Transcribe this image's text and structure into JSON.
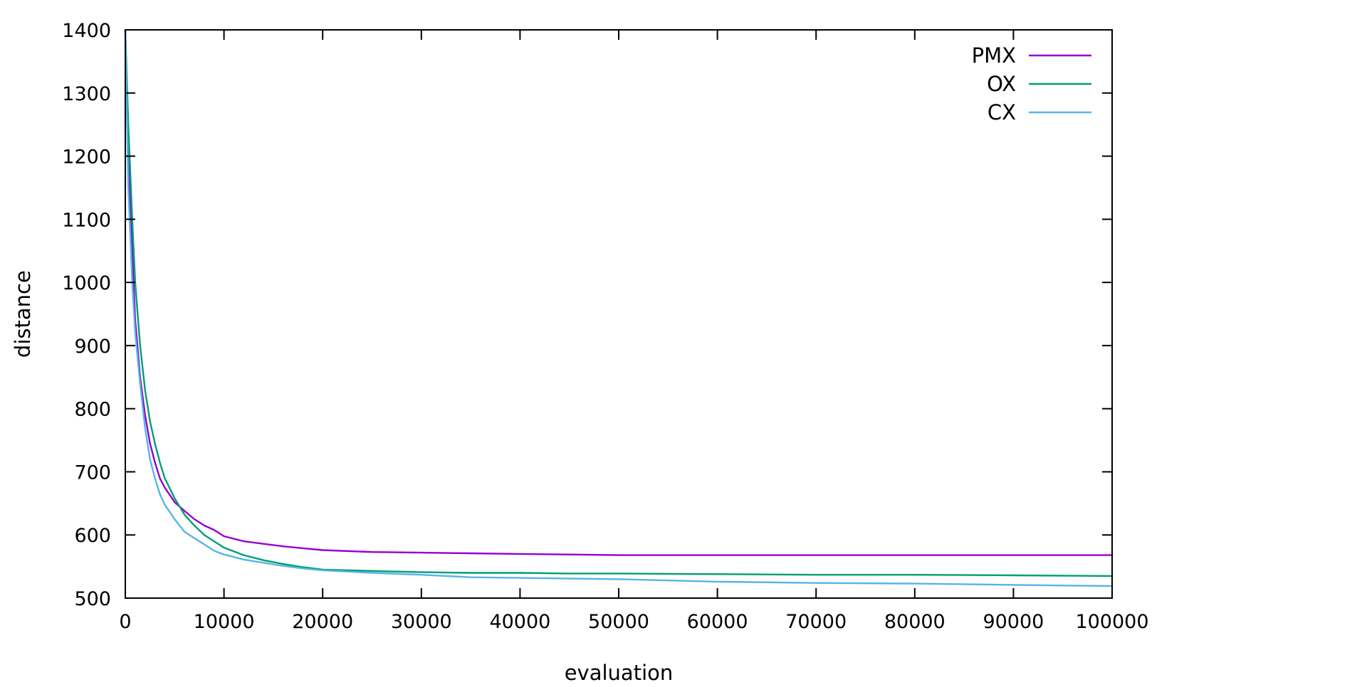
{
  "chart_data": {
    "type": "line",
    "title": "",
    "xlabel": "evaluation",
    "ylabel": "distance",
    "xlim": [
      0,
      100000
    ],
    "ylim": [
      500,
      1400
    ],
    "xticks": [
      0,
      10000,
      20000,
      30000,
      40000,
      50000,
      60000,
      70000,
      80000,
      90000,
      100000
    ],
    "yticks": [
      500,
      600,
      700,
      800,
      900,
      1000,
      1100,
      1200,
      1300,
      1400
    ],
    "grid": false,
    "legend": "top-right",
    "series": [
      {
        "name": "PMX",
        "color": "#9400d3",
        "x": [
          0,
          300,
          700,
          1000,
          1500,
          2000,
          2500,
          3000,
          3500,
          4000,
          5000,
          6000,
          7000,
          8000,
          9000,
          10000,
          12000,
          14000,
          16000,
          18000,
          20000,
          25000,
          30000,
          35000,
          40000,
          45000,
          50000,
          60000,
          70000,
          80000,
          90000,
          100000
        ],
        "y": [
          1400,
          1200,
          1050,
          940,
          850,
          790,
          745,
          715,
          690,
          675,
          652,
          638,
          625,
          615,
          608,
          598,
          590,
          586,
          582,
          579,
          576,
          573,
          572,
          571,
          570,
          569,
          568,
          568,
          568,
          568,
          568,
          568
        ]
      },
      {
        "name": "OX",
        "color": "#009e73",
        "x": [
          0,
          300,
          700,
          1000,
          1500,
          2000,
          2500,
          3000,
          3500,
          4000,
          5000,
          6000,
          7000,
          8000,
          9000,
          10000,
          12000,
          14000,
          16000,
          18000,
          20000,
          25000,
          30000,
          35000,
          40000,
          45000,
          50000,
          60000,
          70000,
          80000,
          90000,
          100000
        ],
        "y": [
          1400,
          1250,
          1100,
          1000,
          900,
          830,
          780,
          745,
          715,
          690,
          658,
          632,
          615,
          600,
          590,
          580,
          568,
          560,
          554,
          549,
          545,
          543,
          541,
          540,
          540,
          539,
          539,
          538,
          537,
          537,
          536,
          535
        ]
      },
      {
        "name": "CX",
        "color": "#56b4e9",
        "x": [
          0,
          300,
          700,
          1000,
          1500,
          2000,
          2500,
          3000,
          3500,
          4000,
          5000,
          6000,
          7000,
          8000,
          9000,
          10000,
          12000,
          14000,
          16000,
          18000,
          20000,
          25000,
          30000,
          35000,
          40000,
          45000,
          50000,
          60000,
          70000,
          80000,
          90000,
          100000
        ],
        "y": [
          1400,
          1150,
          1000,
          920,
          840,
          770,
          720,
          690,
          665,
          648,
          625,
          605,
          595,
          585,
          575,
          569,
          561,
          556,
          551,
          547,
          544,
          540,
          537,
          533,
          532,
          531,
          530,
          526,
          524,
          523,
          521,
          519
        ]
      }
    ]
  }
}
